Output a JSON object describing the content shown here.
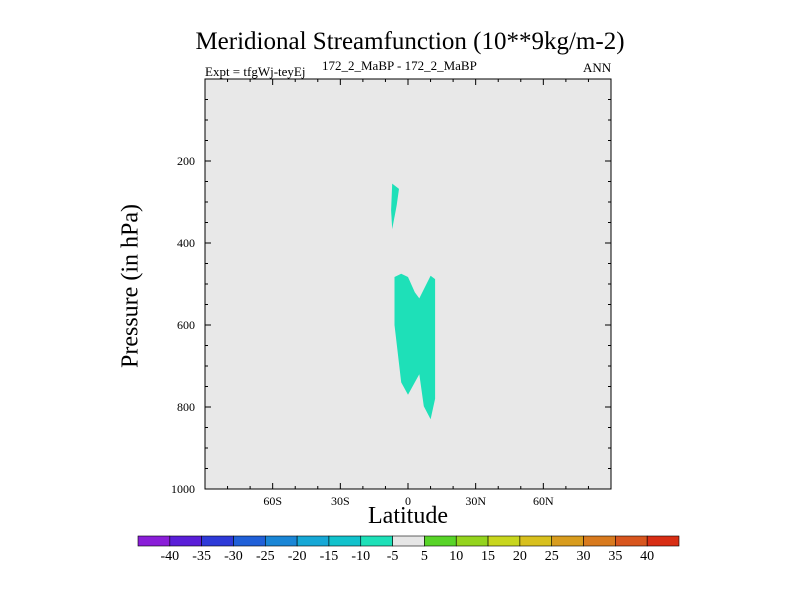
{
  "chart_data": {
    "type": "contour",
    "title": "Meridional Streamfunction (10**9kg/m-2)",
    "subtitle_left": "Expt = tfgWj-teyEj",
    "subtitle_center": "172_2_MaBP - 172_2_MaBP",
    "subtitle_right": "ANN",
    "xlabel": "Latitude",
    "ylabel": "Pressure (in hPa)",
    "xlim": [
      -90,
      90
    ],
    "ylim": [
      1000,
      0
    ],
    "x_ticks": [
      {
        "value": -60,
        "label": "60S"
      },
      {
        "value": -30,
        "label": "30S"
      },
      {
        "value": 0,
        "label": "0"
      },
      {
        "value": 30,
        "label": "30N"
      },
      {
        "value": 60,
        "label": "60N"
      }
    ],
    "y_ticks": [
      {
        "value": 200,
        "label": "200"
      },
      {
        "value": 400,
        "label": "400"
      },
      {
        "value": 600,
        "label": "600"
      },
      {
        "value": 800,
        "label": "800"
      },
      {
        "value": 1000,
        "label": "1000"
      }
    ],
    "background_color": "#e8e8e8",
    "filled_regions": [
      {
        "level_range": [
          -10,
          -5
        ],
        "color": "#1ee0b8",
        "points": [
          [
            -7,
            255
          ],
          [
            -4,
            268
          ],
          [
            -5,
            308
          ],
          [
            -7,
            366
          ],
          [
            -7.5,
            320
          ]
        ]
      },
      {
        "level_range": [
          -10,
          -5
        ],
        "color": "#1ee0b8",
        "points": [
          [
            -6,
            483
          ],
          [
            -3,
            475
          ],
          [
            0,
            483
          ],
          [
            3,
            520
          ],
          [
            5,
            535
          ],
          [
            10,
            480
          ],
          [
            12,
            488
          ],
          [
            12,
            780
          ],
          [
            10,
            830
          ],
          [
            7,
            798
          ],
          [
            5,
            720
          ],
          [
            0,
            770
          ],
          [
            -3,
            740
          ],
          [
            -6,
            600
          ]
        ]
      }
    ],
    "colorbar": {
      "levels": [
        -40,
        -35,
        -30,
        -25,
        -20,
        -15,
        -10,
        -5,
        5,
        10,
        15,
        20,
        25,
        30,
        35,
        40
      ],
      "colors": [
        "#8a1ed8",
        "#5a1ed8",
        "#2e3ad8",
        "#2060d8",
        "#1a86d6",
        "#16a8d6",
        "#12c2cc",
        "#1ee0b8",
        "#e6e6e6",
        "#58d428",
        "#94d41e",
        "#c8d61e",
        "#d8c01e",
        "#d89c1e",
        "#d87a1e",
        "#d8561e",
        "#d82e14"
      ]
    }
  }
}
